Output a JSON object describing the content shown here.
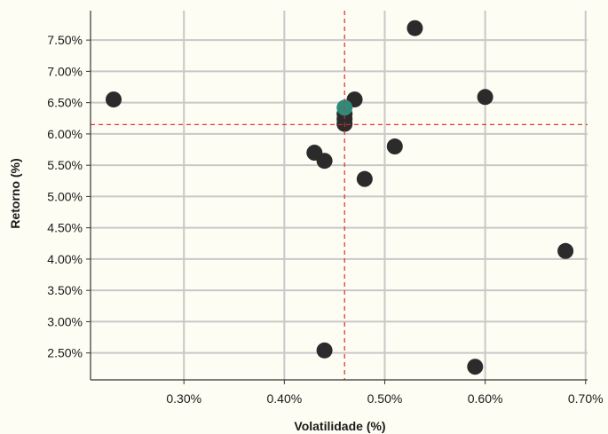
{
  "chart_data": {
    "type": "scatter",
    "title": "",
    "xlabel": "Volatilidade (%)",
    "ylabel": "Retorno (%)",
    "xlim": [
      0.207,
      0.702
    ],
    "ylim": [
      2.07,
      7.97
    ],
    "xticks": [
      {
        "value": 0.3,
        "label": "0.30%"
      },
      {
        "value": 0.4,
        "label": "0.40%"
      },
      {
        "value": 0.5,
        "label": "0.50%"
      },
      {
        "value": 0.6,
        "label": "0.60%"
      },
      {
        "value": 0.7,
        "label": "0.70%"
      }
    ],
    "yticks": [
      {
        "value": 2.5,
        "label": "2.50%"
      },
      {
        "value": 3.0,
        "label": "3.00%"
      },
      {
        "value": 3.5,
        "label": "3.50%"
      },
      {
        "value": 4.0,
        "label": "4.00%"
      },
      {
        "value": 4.5,
        "label": "4.50%"
      },
      {
        "value": 5.0,
        "label": "5.00%"
      },
      {
        "value": 5.5,
        "label": "5.50%"
      },
      {
        "value": 6.0,
        "label": "6.00%"
      },
      {
        "value": 6.5,
        "label": "6.50%"
      },
      {
        "value": 7.0,
        "label": "7.00%"
      },
      {
        "value": 7.5,
        "label": "7.50%"
      }
    ],
    "grid": true,
    "reference_lines": {
      "x": 0.46,
      "y": 6.15,
      "color": "#e03030",
      "style": "dashed"
    },
    "series": [
      {
        "color": "#2b2b2b",
        "points": [
          {
            "x": 0.23,
            "y": 6.55
          },
          {
            "x": 0.53,
            "y": 7.69
          },
          {
            "x": 0.47,
            "y": 6.55
          },
          {
            "x": 0.6,
            "y": 6.59
          },
          {
            "x": 0.46,
            "y": 6.32
          },
          {
            "x": 0.46,
            "y": 6.24
          },
          {
            "x": 0.46,
            "y": 6.16
          },
          {
            "x": 0.43,
            "y": 5.7
          },
          {
            "x": 0.44,
            "y": 5.57
          },
          {
            "x": 0.51,
            "y": 5.8
          },
          {
            "x": 0.48,
            "y": 5.28
          },
          {
            "x": 0.68,
            "y": 4.13
          },
          {
            "x": 0.44,
            "y": 2.54
          },
          {
            "x": 0.59,
            "y": 2.28
          }
        ]
      },
      {
        "color": "#2e8b7a",
        "points": [
          {
            "x": 0.46,
            "y": 6.42
          }
        ]
      }
    ]
  }
}
